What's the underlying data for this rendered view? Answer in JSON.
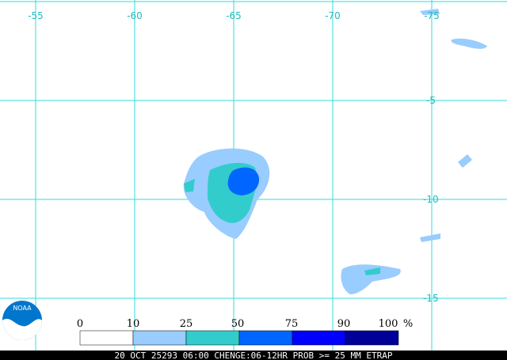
{
  "map": {
    "lon_labels": [
      "-55",
      "-60",
      "-65",
      "-70",
      "-75"
    ],
    "lat_labels": [
      "-5",
      "-10",
      "-15"
    ],
    "logo_text": "NOAA",
    "legend": {
      "labels": [
        0,
        10,
        25,
        50,
        75,
        90,
        100
      ],
      "unit": "%",
      "colors": [
        "#ffffff",
        "#99ccff",
        "#33cccc",
        "#0066ff",
        "#0000ff",
        "#000099"
      ]
    },
    "footer": "20 OCT 25293 06:00 CHENGE:06-12HR PROB >= 25 MM ETRAP"
  }
}
